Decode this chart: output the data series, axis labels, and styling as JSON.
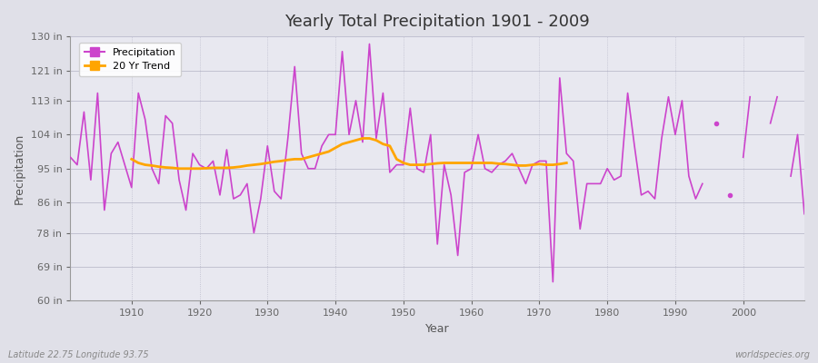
{
  "title": "Yearly Total Precipitation 1901 - 2009",
  "xlabel": "Year",
  "ylabel": "Precipitation",
  "subtitle_left": "Latitude 22.75 Longitude 93.75",
  "subtitle_right": "worldspecies.org",
  "ylim": [
    60,
    130
  ],
  "yticks": [
    60,
    69,
    78,
    86,
    95,
    104,
    113,
    121,
    130
  ],
  "ytick_labels": [
    "60 in",
    "69 in",
    "78 in",
    "86 in",
    "95 in",
    "104 in",
    "113 in",
    "121 in",
    "130 in"
  ],
  "xlim": [
    1901,
    2009
  ],
  "precip_color": "#CC44CC",
  "trend_color": "#FFA500",
  "fig_bg_color": "#E0E0E8",
  "plot_bg_color": "#E8E8F0",
  "years": [
    1901,
    1902,
    1903,
    1904,
    1905,
    1906,
    1907,
    1908,
    1909,
    1910,
    1911,
    1912,
    1913,
    1914,
    1915,
    1916,
    1917,
    1918,
    1919,
    1920,
    1921,
    1922,
    1923,
    1924,
    1925,
    1926,
    1927,
    1928,
    1929,
    1930,
    1931,
    1932,
    1933,
    1934,
    1935,
    1936,
    1937,
    1938,
    1939,
    1940,
    1941,
    1942,
    1943,
    1944,
    1945,
    1946,
    1947,
    1948,
    1949,
    1950,
    1951,
    1952,
    1953,
    1954,
    1955,
    1956,
    1957,
    1958,
    1959,
    1960,
    1961,
    1962,
    1963,
    1964,
    1965,
    1966,
    1967,
    1968,
    1969,
    1970,
    1971,
    1972,
    1973,
    1974,
    1975,
    1976,
    1977,
    1978,
    1979,
    1980,
    1981,
    1982,
    1983,
    1984,
    1985,
    1986,
    1987,
    1988,
    1989,
    1990,
    1991,
    1992,
    1993,
    1994,
    1995,
    1996,
    1997,
    1998,
    1999,
    2000,
    2001,
    2002,
    2003,
    2004,
    2005,
    2006,
    2007,
    2008,
    2009
  ],
  "precip": [
    98,
    96,
    110,
    92,
    115,
    84,
    99,
    102,
    96,
    90,
    115,
    108,
    95,
    91,
    109,
    107,
    92,
    84,
    99,
    96,
    95,
    97,
    88,
    100,
    87,
    88,
    91,
    78,
    87,
    101,
    89,
    87,
    103,
    122,
    99,
    95,
    95,
    101,
    104,
    104,
    126,
    104,
    113,
    102,
    128,
    103,
    115,
    94,
    96,
    96,
    111,
    95,
    94,
    104,
    75,
    96,
    88,
    72,
    94,
    95,
    104,
    95,
    94,
    96,
    97,
    99,
    95,
    91,
    96,
    97,
    97,
    65,
    119,
    99,
    97,
    79,
    91,
    91,
    91,
    95,
    92,
    93,
    115,
    101,
    88,
    89,
    87,
    103,
    114,
    104,
    113,
    93,
    87,
    91,
    null,
    107,
    null,
    88,
    null,
    98,
    114,
    null,
    null,
    107,
    114,
    null,
    93,
    104,
    83
  ],
  "trend_years": [
    1910,
    1911,
    1912,
    1913,
    1914,
    1915,
    1916,
    1917,
    1918,
    1919,
    1920,
    1921,
    1922,
    1923,
    1924,
    1925,
    1926,
    1927,
    1928,
    1929,
    1930,
    1931,
    1932,
    1933,
    1934,
    1935,
    1936,
    1937,
    1938,
    1939,
    1940,
    1941,
    1942,
    1943,
    1944,
    1945,
    1946,
    1947,
    1948,
    1949,
    1950,
    1951,
    1952,
    1953,
    1954,
    1955,
    1956,
    1957,
    1958,
    1959,
    1960,
    1961,
    1962,
    1963,
    1964,
    1965,
    1966,
    1967,
    1968,
    1969,
    1970,
    1971,
    1972,
    1973,
    1974
  ],
  "trend": [
    97.5,
    96.5,
    96.0,
    95.8,
    95.5,
    95.3,
    95.2,
    95.0,
    95.0,
    95.0,
    95.0,
    95.1,
    95.2,
    95.2,
    95.2,
    95.3,
    95.5,
    95.8,
    96.0,
    96.2,
    96.5,
    96.8,
    97.0,
    97.3,
    97.5,
    97.5,
    98.0,
    98.5,
    99.0,
    99.5,
    100.5,
    101.5,
    102.0,
    102.5,
    103.0,
    103.0,
    102.5,
    101.5,
    101.0,
    97.5,
    96.5,
    96.0,
    96.0,
    96.0,
    96.2,
    96.4,
    96.5,
    96.5,
    96.5,
    96.5,
    96.5,
    96.5,
    96.5,
    96.5,
    96.3,
    96.2,
    96.0,
    95.8,
    95.8,
    96.0,
    96.2,
    96.0,
    96.0,
    96.2,
    96.5
  ]
}
